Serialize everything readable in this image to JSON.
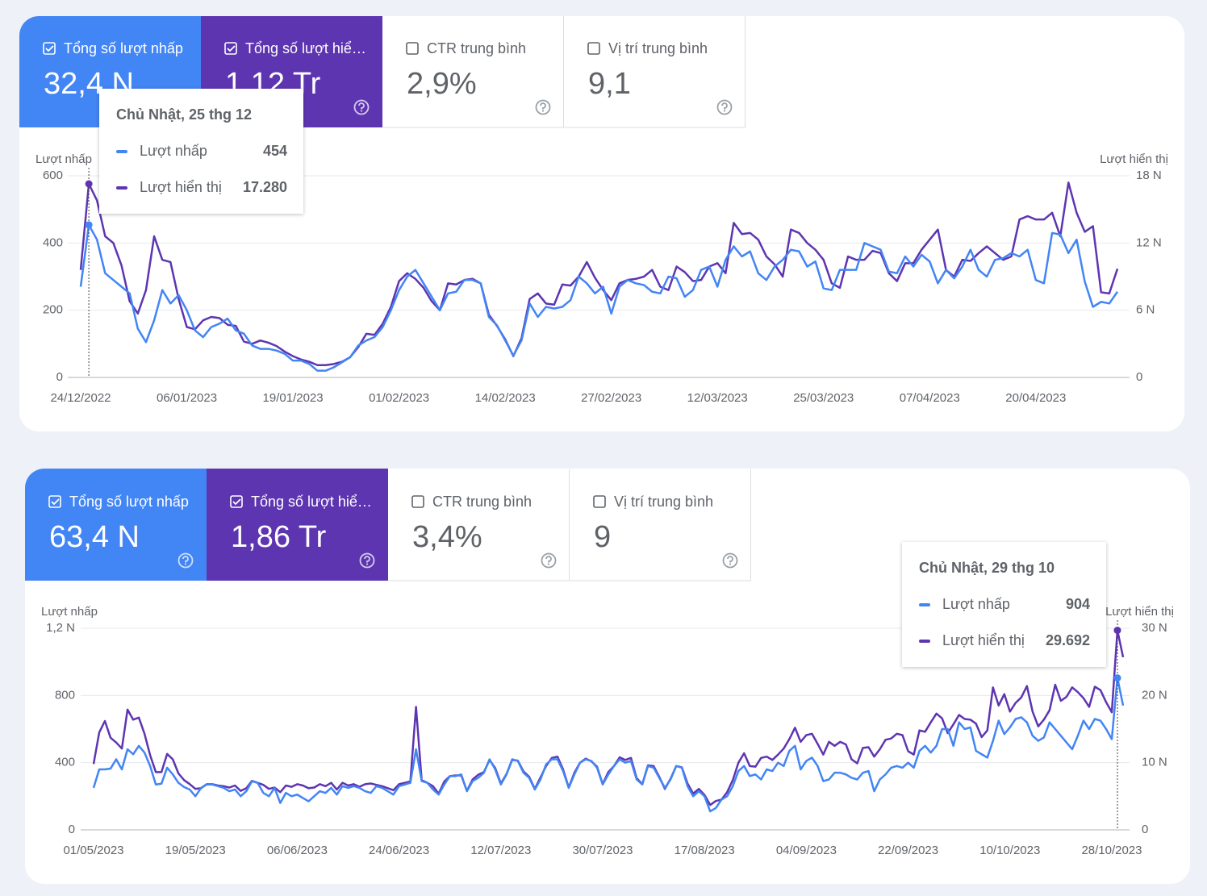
{
  "metric_cards": [
    [
      {
        "label": "Tổng số lượt nhấp",
        "value": "32,4 N",
        "checked": true,
        "color": "#4285f4"
      },
      {
        "label": "Tổng số lượt hiể…",
        "value": "1,12 Tr",
        "checked": true,
        "color": "#5e35b1"
      },
      {
        "label": "CTR trung bình",
        "value": "2,9%",
        "checked": false,
        "color": "#ffffff"
      },
      {
        "label": "Vị trí trung bình",
        "value": "9,1",
        "checked": false,
        "color": "#ffffff"
      }
    ],
    [
      {
        "label": "Tổng số lượt nhấp",
        "value": "63,4 N",
        "checked": true,
        "color": "#4285f4"
      },
      {
        "label": "Tổng số lượt hiể…",
        "value": "1,86 Tr",
        "checked": true,
        "color": "#5e35b1"
      },
      {
        "label": "CTR trung bình",
        "value": "3,4%",
        "checked": false,
        "color": "#ffffff"
      },
      {
        "label": "Vị trí trung bình",
        "value": "9",
        "checked": false,
        "color": "#ffffff"
      }
    ]
  ],
  "chart_data": [
    {
      "type": "line",
      "ylabel": "Lượt nhấp",
      "y2label": "Lượt hiển thị",
      "grid": true,
      "categories": [
        "24/12/2022",
        null,
        null,
        null,
        null,
        null,
        null,
        null,
        null,
        null,
        null,
        null,
        null,
        "06/01/2023",
        null,
        null,
        null,
        null,
        null,
        null,
        null,
        null,
        null,
        null,
        null,
        null,
        "19/01/2023",
        null,
        null,
        null,
        null,
        null,
        null,
        null,
        null,
        null,
        null,
        null,
        null,
        "01/02/2023",
        null,
        null,
        null,
        null,
        null,
        null,
        null,
        null,
        null,
        null,
        null,
        null,
        "14/02/2023",
        null,
        null,
        null,
        null,
        null,
        null,
        null,
        null,
        null,
        null,
        null,
        null,
        "27/02/2023",
        null,
        null,
        null,
        null,
        null,
        null,
        null,
        null,
        null,
        null,
        null,
        null,
        "12/03/2023",
        null,
        null,
        null,
        null,
        null,
        null,
        null,
        null,
        null,
        null,
        null,
        null,
        "25/03/2023",
        null,
        null,
        null,
        null,
        null,
        null,
        null,
        null,
        null,
        null,
        null,
        null,
        "07/04/2023",
        null,
        null,
        null,
        null,
        null,
        null,
        null,
        null,
        null,
        null,
        null,
        null,
        "20/04/2023",
        null,
        null,
        null,
        null,
        null,
        null,
        null,
        null,
        null,
        null
      ],
      "series": [
        {
          "name": "Lượt nhấp",
          "color": "#4285f4",
          "values": [
            270,
            454,
            410,
            310,
            290,
            270,
            250,
            145,
            105,
            170,
            260,
            220,
            245,
            200,
            140,
            120,
            150,
            160,
            175,
            140,
            130,
            95,
            85,
            85,
            80,
            70,
            50,
            50,
            40,
            20,
            20,
            30,
            45,
            60,
            95,
            110,
            120,
            150,
            200,
            260,
            300,
            320,
            280,
            240,
            200,
            250,
            255,
            290,
            290,
            280,
            180,
            155,
            110,
            65,
            110,
            220,
            180,
            210,
            205,
            210,
            230,
            300,
            280,
            250,
            270,
            190,
            270,
            290,
            280,
            275,
            255,
            250,
            300,
            295,
            240,
            260,
            320,
            330,
            270,
            350,
            390,
            360,
            375,
            310,
            290,
            330,
            350,
            380,
            375,
            330,
            345,
            265,
            260,
            320,
            320,
            320,
            400,
            390,
            380,
            315,
            310,
            360,
            330,
            365,
            345,
            280,
            320,
            295,
            330,
            380,
            320,
            300,
            350,
            355,
            370,
            360,
            380,
            290,
            280,
            430,
            425,
            370,
            410,
            285,
            210,
            225,
            220,
            255
          ]
        },
        {
          "name": "Lượt hiển thị",
          "color": "#5e35b1",
          "axis": "y2",
          "values": [
            9600,
            17280,
            15800,
            12600,
            12000,
            10000,
            6800,
            5700,
            7800,
            12600,
            10500,
            10300,
            7000,
            4500,
            4300,
            5100,
            5400,
            5300,
            4700,
            4600,
            3200,
            3000,
            3300,
            3100,
            2800,
            2300,
            1900,
            1600,
            1400,
            1100,
            1100,
            1200,
            1400,
            1800,
            2700,
            3900,
            3800,
            4800,
            6300,
            8600,
            9300,
            8800,
            8000,
            6800,
            6000,
            8400,
            8300,
            8700,
            8800,
            8400,
            5600,
            4600,
            3400,
            1900,
            3500,
            7000,
            7500,
            6600,
            6500,
            8300,
            8200,
            9000,
            10300,
            8900,
            7800,
            6900,
            8400,
            8700,
            8800,
            9000,
            9600,
            8100,
            7800,
            9900,
            9400,
            8600,
            8700,
            9900,
            10200,
            9300,
            13800,
            12800,
            12900,
            12300,
            10800,
            10100,
            9000,
            13200,
            12900,
            12000,
            11400,
            10500,
            8400,
            8000,
            10800,
            10500,
            10500,
            11300,
            11100,
            9300,
            8600,
            10200,
            10200,
            11400,
            12300,
            13200,
            9600,
            9000,
            10500,
            10400,
            11100,
            11700,
            11100,
            10500,
            10800,
            14100,
            14400,
            14100,
            14100,
            14700,
            12600,
            17400,
            14700,
            13000,
            13500,
            7600,
            7500,
            9700
          ]
        }
      ],
      "ylim": [
        0,
        600
      ],
      "yticks": [
        0,
        200,
        400,
        600
      ],
      "y2lim": [
        0,
        18000
      ],
      "y2ticks": [
        0,
        {
          "value": 6000,
          "label": "6 N"
        },
        {
          "value": 12000,
          "label": "12 N"
        },
        {
          "value": 18000,
          "label": "18 N"
        }
      ],
      "tooltip": {
        "title": "Chủ Nhật, 25 thg 12",
        "items": [
          454,
          {
            "value": 17280,
            "label": "17.280"
          }
        ]
      }
    },
    {
      "type": "line",
      "ylabel": "Lượt nhấp",
      "y2label": "Lượt hiển thị",
      "grid": true,
      "categories": [
        "01/05/2023",
        null,
        null,
        null,
        null,
        null,
        null,
        null,
        null,
        null,
        null,
        null,
        null,
        null,
        null,
        null,
        null,
        null,
        "19/05/2023",
        null,
        null,
        null,
        null,
        null,
        null,
        null,
        null,
        null,
        null,
        null,
        null,
        null,
        null,
        null,
        null,
        null,
        "06/06/2023",
        null,
        null,
        null,
        null,
        null,
        null,
        null,
        null,
        null,
        null,
        null,
        null,
        null,
        null,
        null,
        null,
        null,
        "24/06/2023",
        null,
        null,
        null,
        null,
        null,
        null,
        null,
        null,
        null,
        null,
        null,
        null,
        null,
        null,
        null,
        null,
        null,
        "12/07/2023",
        null,
        null,
        null,
        null,
        null,
        null,
        null,
        null,
        null,
        null,
        null,
        null,
        null,
        null,
        null,
        null,
        null,
        "30/07/2023",
        null,
        null,
        null,
        null,
        null,
        null,
        null,
        null,
        null,
        null,
        null,
        null,
        null,
        null,
        null,
        null,
        null,
        "17/08/2023",
        null,
        null,
        null,
        null,
        null,
        null,
        null,
        null,
        null,
        null,
        null,
        null,
        null,
        null,
        null,
        null,
        null,
        "04/09/2023",
        null,
        null,
        null,
        null,
        null,
        null,
        null,
        null,
        null,
        null,
        null,
        null,
        null,
        null,
        null,
        null,
        null,
        "22/09/2023",
        null,
        null,
        null,
        null,
        null,
        null,
        null,
        null,
        null,
        null,
        null,
        null,
        null,
        null,
        null,
        null,
        null,
        "10/10/2023",
        null,
        null,
        null,
        null,
        null,
        null,
        null,
        null,
        null,
        null,
        null,
        null,
        null,
        null,
        null,
        null,
        null,
        "28/10/2023",
        null,
        null
      ],
      "series": [
        {
          "name": "Lượt nhấp",
          "color": "#4285f4",
          "values": [
            250,
            360,
            360,
            365,
            420,
            360,
            480,
            450,
            500,
            460,
            380,
            270,
            275,
            370,
            330,
            280,
            255,
            240,
            200,
            250,
            270,
            270,
            260,
            250,
            230,
            240,
            200,
            230,
            290,
            280,
            220,
            200,
            250,
            160,
            220,
            200,
            210,
            190,
            170,
            200,
            230,
            220,
            250,
            210,
            260,
            250,
            260,
            250,
            230,
            220,
            260,
            250,
            230,
            210,
            260,
            270,
            280,
            480,
            290,
            280,
            240,
            210,
            270,
            320,
            320,
            330,
            230,
            290,
            310,
            340,
            420,
            360,
            270,
            330,
            420,
            410,
            340,
            310,
            240,
            300,
            390,
            420,
            420,
            350,
            250,
            330,
            400,
            420,
            410,
            370,
            270,
            330,
            380,
            420,
            400,
            410,
            300,
            270,
            380,
            370,
            310,
            250,
            300,
            380,
            370,
            260,
            200,
            230,
            200,
            110,
            130,
            180,
            200,
            260,
            350,
            380,
            320,
            330,
            300,
            360,
            350,
            400,
            380,
            470,
            500,
            360,
            410,
            430,
            380,
            290,
            300,
            340,
            340,
            330,
            310,
            300,
            340,
            350,
            230,
            300,
            330,
            370,
            380,
            370,
            400,
            370,
            470,
            500,
            460,
            500,
            600,
            600,
            500,
            640,
            600,
            610,
            470,
            450,
            430,
            530,
            650,
            570,
            610,
            660,
            670,
            640,
            560,
            530,
            550,
            640,
            600,
            560,
            520,
            480,
            560,
            650,
            600,
            660,
            650,
            600,
            540,
            904,
            740
          ]
        },
        {
          "name": "Lượt hiển thị",
          "color": "#5e35b1",
          "axis": "y2",
          "values": [
            9800,
            14500,
            16200,
            13700,
            13000,
            12100,
            17900,
            16400,
            16700,
            14300,
            11100,
            8600,
            8600,
            11300,
            10500,
            8400,
            7400,
            6800,
            6100,
            6200,
            6800,
            6800,
            6600,
            6500,
            6300,
            6600,
            5800,
            6200,
            7300,
            7000,
            6700,
            6100,
            6300,
            5600,
            6600,
            6400,
            6800,
            6600,
            6200,
            6300,
            6800,
            6500,
            7000,
            6000,
            7000,
            6600,
            6800,
            6400,
            6800,
            6900,
            6700,
            6500,
            6200,
            5900,
            6800,
            7000,
            7200,
            18300,
            7400,
            7000,
            6500,
            5400,
            7200,
            8000,
            8100,
            8100,
            5800,
            7500,
            8200,
            8600,
            10400,
            9200,
            6900,
            8300,
            10400,
            10300,
            8700,
            7900,
            6100,
            7800,
            9500,
            10700,
            10900,
            9000,
            6300,
            8500,
            10000,
            10600,
            10200,
            9400,
            6800,
            8600,
            9500,
            10800,
            10400,
            10700,
            7700,
            6800,
            9600,
            9500,
            7900,
            6100,
            7600,
            9500,
            9300,
            6900,
            5400,
            6100,
            5200,
            3700,
            4300,
            4500,
            5600,
            7400,
            10000,
            11400,
            9500,
            9400,
            10700,
            10900,
            10400,
            11200,
            12100,
            13500,
            15200,
            13100,
            14100,
            14300,
            12800,
            11200,
            13100,
            12500,
            13100,
            12700,
            10500,
            9900,
            12200,
            12300,
            10900,
            12000,
            13400,
            13600,
            14300,
            14100,
            11700,
            11200,
            14800,
            14600,
            16000,
            17300,
            16600,
            14400,
            15700,
            17100,
            16500,
            16400,
            15800,
            13800,
            14800,
            21200,
            18500,
            20200,
            17600,
            18900,
            19700,
            21400,
            17600,
            15400,
            16400,
            17800,
            21600,
            19200,
            19800,
            21200,
            20500,
            19600,
            18300,
            21300,
            20800,
            19000,
            17500,
            29692,
            25700
          ]
        }
      ],
      "ylim": [
        0,
        1200
      ],
      "yticks": [
        0,
        400,
        800,
        {
          "value": 1200,
          "label": "1,2 N"
        }
      ],
      "y2lim": [
        0,
        30000
      ],
      "y2ticks": [
        0,
        {
          "value": 10000,
          "label": "10 N"
        },
        {
          "value": 20000,
          "label": "20 N"
        },
        {
          "value": 30000,
          "label": "30 N"
        }
      ],
      "tooltip": {
        "title": "Chủ Nhật, 29 thg 10",
        "items": [
          904,
          {
            "value": 29692,
            "label": "29.692"
          }
        ]
      }
    }
  ]
}
